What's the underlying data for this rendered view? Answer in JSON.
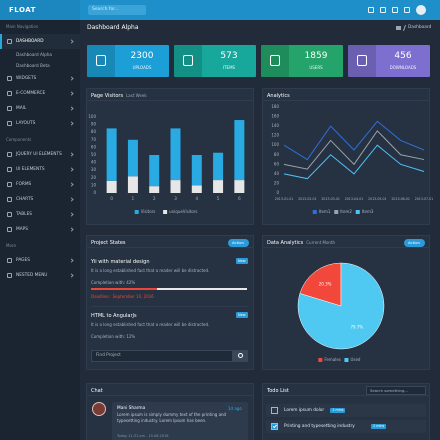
{
  "topbar": {
    "logo": "FLOAT",
    "search_placeholder": "Search for..."
  },
  "sidebar": {
    "sections": [
      {
        "title": "Main Navigation",
        "items": [
          "DASHBOARD",
          "WIDGETS",
          "E-COMMERCE",
          "MAIL",
          "LAYOUTS"
        ]
      },
      {
        "title": "Components",
        "items": [
          "JQUERY UI ELEMENTS",
          "UI ELEMENTS",
          "FORMS",
          "CHARTS",
          "TABLES",
          "MAPS"
        ]
      },
      {
        "title": "More",
        "items": [
          "PAGES",
          "NESTED MENU"
        ]
      }
    ],
    "submenu": [
      "Dashboard Alpha",
      "Dashboard Beta"
    ]
  },
  "header": {
    "title": "Dashboard Alpha",
    "breadcrumb": "Dashboard"
  },
  "stats": [
    {
      "value": "2300",
      "label": "UPLOADS",
      "color": "#1c9fd6"
    },
    {
      "value": "573",
      "label": "ITEMS",
      "color": "#17a89b"
    },
    {
      "value": "1859",
      "label": "USERS",
      "color": "#24a46b"
    },
    {
      "value": "456",
      "label": "DOWNLOADS",
      "color": "#7d6fd0"
    }
  ],
  "chart_data": [
    {
      "type": "bar",
      "title": "Page Visitors",
      "subtitle": "Last Week",
      "stacked": true,
      "categories": [
        "0",
        "1",
        "2",
        "3",
        "4",
        "5",
        "6"
      ],
      "series": [
        {
          "name": "Visitors",
          "color": "#29aae2",
          "values": [
            69,
            48,
            41,
            68,
            40,
            36,
            79
          ]
        },
        {
          "name": "uniqueVisitors",
          "color": "#e6e6e6",
          "values": [
            16,
            22,
            9,
            17,
            10,
            17,
            17
          ]
        }
      ],
      "ylim": [
        0,
        100
      ],
      "yticks": [
        0,
        10,
        20,
        30,
        40,
        50,
        60,
        70,
        80,
        90,
        100
      ]
    },
    {
      "type": "line",
      "title": "Analytics",
      "x": [
        "2013-01-01",
        "2013-02-01",
        "2013-03-01",
        "2013-04-01",
        "2013-05-01",
        "2013-06-01",
        "2013-07-01"
      ],
      "series": [
        {
          "name": "Item1",
          "color": "#2f6fd6",
          "values": [
            100,
            70,
            140,
            90,
            150,
            110,
            90
          ]
        },
        {
          "name": "Item2",
          "color": "#9aa3ad",
          "values": [
            60,
            50,
            110,
            60,
            130,
            80,
            70
          ]
        },
        {
          "name": "Item3",
          "color": "#4fc3f7",
          "values": [
            40,
            30,
            80,
            40,
            100,
            60,
            45
          ]
        }
      ],
      "ylim": [
        0,
        180
      ],
      "yticks": [
        0,
        20,
        40,
        60,
        80,
        100,
        120,
        140,
        160,
        180
      ]
    },
    {
      "type": "pie",
      "title": "Data Analytics",
      "subtitle": "Current Month",
      "categories": [
        "Females",
        "Used"
      ],
      "values": [
        20.3,
        79.7
      ],
      "value_labels": [
        "20.3%",
        "79.7%"
      ],
      "colors": [
        "#f2473b",
        "#4fc8f2"
      ]
    }
  ],
  "projects": {
    "title": "Project States",
    "action": "Action",
    "items": [
      {
        "name": "Yii with material design",
        "badge": "New",
        "description": "It is a long established fact that a reader will be distracted.",
        "completion": "Completion with: 42%",
        "progress": 42,
        "deadline": "Deadline : September 10, 2016"
      },
      {
        "name": "HTML to AngularJs",
        "badge": "New",
        "description": "It is a long established fact that a reader will be distracted.",
        "completion": "Completion with: 12%"
      }
    ],
    "search_placeholder": "Find Project"
  },
  "analytics_action": "Action",
  "chat": {
    "title": "Chat",
    "messages": [
      {
        "name": "Mani Sharma",
        "time": "1d ago",
        "text": "Lorem ipsum is simply dummy text of the printing and typesetting industry. Lorem Ipsum has been.",
        "date": "Today 11:31 am - 15.08.2016"
      }
    ]
  },
  "todo": {
    "title": "Todo List",
    "search_placeholder": "Search something...",
    "items": [
      {
        "text": "Lorem ipsum dolor",
        "badge": "1 mins",
        "done": false
      },
      {
        "text": "Printing and typesetting industry",
        "badge": "2 mins",
        "done": true
      }
    ]
  }
}
